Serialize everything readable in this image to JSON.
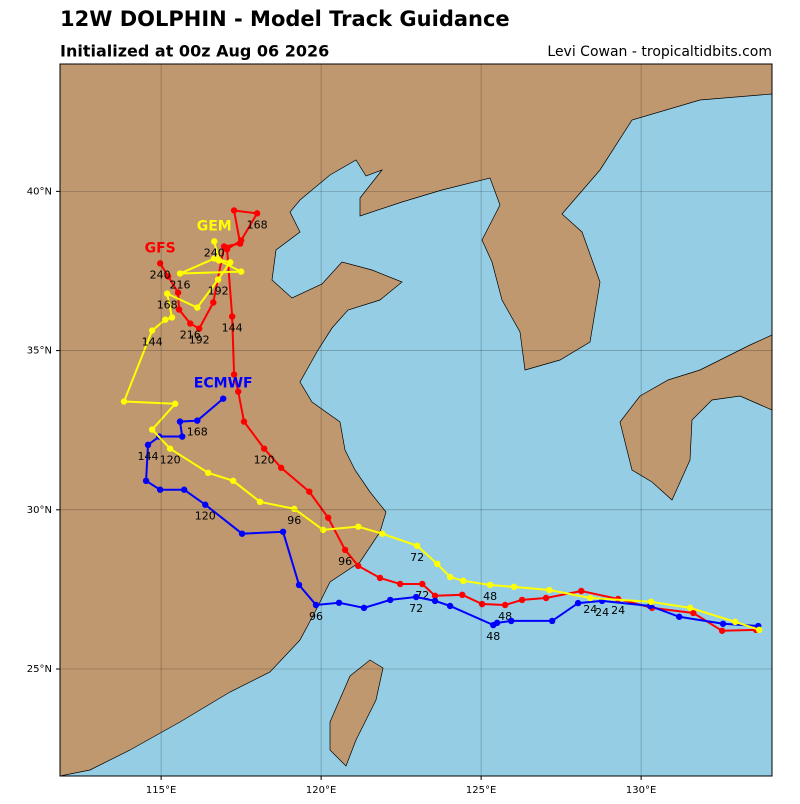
{
  "chart_data": {
    "type": "line",
    "title": "12W DOLPHIN - Model Track Guidance",
    "subtitle": "Initialized at 00z Aug 06 2026",
    "credit": "Levi Cowan - tropicaltidbits.com",
    "xlim": [
      111.84,
      134.09
    ],
    "ylim": [
      21.64,
      44
    ],
    "xticks": [
      {
        "value": 115,
        "label": "115°E"
      },
      {
        "value": 120,
        "label": "120°E"
      },
      {
        "value": 125,
        "label": "125°E"
      },
      {
        "value": 130,
        "label": "130°E"
      }
    ],
    "yticks": [
      {
        "value": 25,
        "label": "25°N"
      },
      {
        "value": 30,
        "label": "30°N"
      },
      {
        "value": 35,
        "label": "35°N"
      },
      {
        "value": 40,
        "label": "40°N"
      }
    ],
    "grid": true,
    "series": [
      {
        "name": "GFS",
        "color": "#ff0000",
        "x": [
          133.59,
          132.53,
          131.63,
          130.34,
          129.28,
          128.13,
          127.03,
          126.28,
          125.75,
          125.03,
          124.41,
          123.56,
          123.16,
          122.47,
          121.84,
          121.16,
          120.75,
          120.22,
          119.63,
          118.75,
          118.22,
          117.59,
          117.41,
          117.28,
          117.22,
          117.06,
          117.5,
          118.0,
          117.28,
          117.47,
          116.97,
          116.63,
          116.19,
          115.91,
          115.56,
          115.53,
          115.22,
          114.97
        ],
        "values": [
          26.23,
          26.2,
          26.76,
          26.92,
          27.2,
          27.45,
          27.23,
          27.17,
          27.01,
          27.04,
          27.33,
          27.3,
          27.67,
          27.67,
          27.86,
          28.24,
          28.74,
          29.75,
          30.57,
          31.32,
          31.92,
          32.77,
          33.71,
          34.25,
          36.07,
          38.18,
          38.46,
          39.31,
          39.4,
          38.36,
          38.27,
          36.51,
          35.69,
          35.85,
          36.29,
          36.82,
          37.33,
          37.74
        ],
        "point_labels": [
          null,
          null,
          null,
          null,
          "24",
          null,
          null,
          null,
          "48",
          null,
          null,
          null,
          "72",
          null,
          null,
          null,
          "96",
          null,
          null,
          null,
          "120",
          null,
          null,
          null,
          "144",
          null,
          null,
          "168",
          null,
          null,
          null,
          null,
          "192",
          "216",
          null,
          null,
          null,
          "240"
        ]
      },
      {
        "name": "ECMWF",
        "color": "#0000ff",
        "x": [
          133.66,
          132.56,
          131.19,
          130.28,
          128.78,
          128.03,
          127.22,
          125.94,
          125.5,
          125.38,
          124.03,
          123.56,
          122.97,
          122.16,
          121.34,
          120.56,
          119.84,
          119.31,
          118.81,
          117.53,
          116.38,
          115.72,
          114.97,
          114.53,
          114.59,
          114.94,
          115.66,
          115.59,
          116.13,
          116.94
        ],
        "values": [
          26.35,
          26.42,
          26.64,
          26.98,
          27.14,
          27.07,
          26.51,
          26.51,
          26.45,
          26.38,
          26.98,
          27.14,
          27.26,
          27.17,
          26.92,
          27.08,
          27.01,
          27.64,
          29.31,
          29.25,
          30.16,
          30.63,
          30.63,
          30.91,
          32.04,
          32.3,
          32.3,
          32.77,
          32.8,
          33.49
        ],
        "point_labels": [
          null,
          null,
          null,
          null,
          "24",
          null,
          null,
          null,
          null,
          "48",
          null,
          null,
          "72",
          null,
          null,
          null,
          "96",
          null,
          null,
          null,
          "120",
          null,
          null,
          null,
          "144",
          null,
          null,
          null,
          "168",
          null
        ]
      },
      {
        "name": "GEM",
        "color": "#ffff00",
        "x": [
          133.69,
          132.94,
          131.53,
          130.31,
          128.41,
          127.13,
          126.03,
          125.28,
          124.44,
          124.03,
          123.63,
          123.0,
          121.91,
          121.16,
          120.06,
          119.16,
          118.09,
          117.25,
          116.47,
          115.28,
          114.72,
          115.44,
          113.84,
          114.72,
          115.13,
          115.34,
          115.19,
          116.13,
          116.78,
          117.16,
          116.66,
          115.59,
          117.5,
          116.81,
          116.66
        ],
        "values": [
          26.23,
          26.48,
          26.92,
          27.11,
          27.23,
          27.48,
          27.58,
          27.64,
          27.77,
          27.89,
          28.3,
          28.87,
          29.25,
          29.47,
          29.37,
          30.03,
          30.25,
          30.91,
          31.16,
          31.92,
          32.52,
          33.33,
          33.4,
          35.63,
          35.97,
          36.04,
          36.79,
          36.35,
          37.23,
          37.77,
          37.89,
          37.42,
          37.48,
          37.83,
          38.43
        ],
        "point_labels": [
          null,
          null,
          null,
          null,
          "24",
          null,
          null,
          "48",
          null,
          null,
          null,
          "72",
          null,
          null,
          null,
          "96",
          null,
          null,
          null,
          "120",
          null,
          null,
          null,
          "144",
          null,
          null,
          "168",
          null,
          "192",
          null,
          null,
          "216",
          null,
          null,
          "240"
        ]
      }
    ]
  }
}
